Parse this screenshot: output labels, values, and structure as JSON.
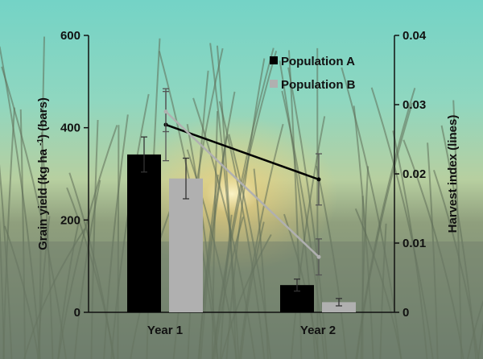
{
  "chart_data": {
    "type": "bar",
    "categories": [
      "Year 1",
      "Year 2"
    ],
    "ylabel_left": "Grain yield (kg ha ",
    "ylabel_left_sup": "-1",
    "ylabel_left_suffix": ") (bars)",
    "ylabel_right": "Harvest index (lines)",
    "ylim_left": [
      0,
      600
    ],
    "ylim_right": [
      0,
      0.04
    ],
    "yticks_left": [
      "0",
      "200",
      "400",
      "600"
    ],
    "yticks_right": [
      "0",
      "0.01",
      "0.02",
      "0.03",
      "0.04"
    ],
    "legend_placement": "top-right",
    "series": [
      {
        "name": "Population A",
        "color": "#000000",
        "bar_values": [
          342,
          59
        ],
        "bar_error": [
          38,
          13
        ],
        "line_values": [
          0.0271,
          0.0192
        ],
        "line_error": [
          0.0052,
          0.0037
        ]
      },
      {
        "name": "Population B",
        "color": "#b0b0b0",
        "bar_values": [
          290,
          22
        ],
        "bar_error": [
          44,
          8
        ],
        "line_values": [
          0.029,
          0.008
        ],
        "line_error": [
          0.0029,
          0.0026
        ]
      }
    ]
  }
}
